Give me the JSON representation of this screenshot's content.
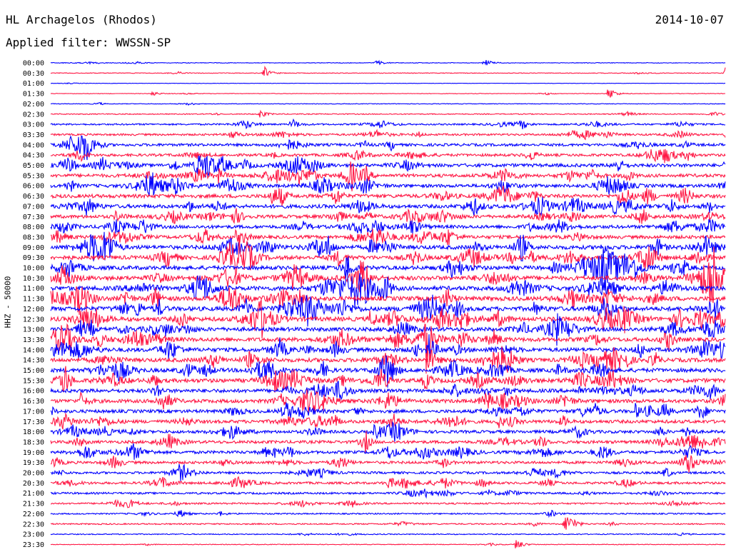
{
  "header": {
    "station": "HL Archagelos (Rhodos)",
    "date": "2014-10-07",
    "filter": "Applied filter: WWSSN-SP"
  },
  "chart_data": {
    "type": "line",
    "ylabel": "HHZ - 50000",
    "row_labels": [
      "00:00",
      "00:30",
      "01:00",
      "01:30",
      "02:00",
      "02:30",
      "03:00",
      "03:30",
      "04:00",
      "04:30",
      "05:00",
      "05:30",
      "06:00",
      "06:30",
      "07:00",
      "07:30",
      "08:00",
      "08:30",
      "09:00",
      "09:30",
      "10:00",
      "10:30",
      "11:00",
      "11:30",
      "12:00",
      "12:30",
      "13:00",
      "13:30",
      "14:00",
      "14:30",
      "15:00",
      "15:30",
      "16:00",
      "16:30",
      "17:00",
      "17:30",
      "18:00",
      "18:30",
      "19:00",
      "19:30",
      "20:00",
      "20:30",
      "21:00",
      "21:30",
      "22:00",
      "22:30",
      "23:00",
      "23:30"
    ],
    "row_duration_minutes": 30,
    "noise_level": [
      1,
      1,
      0.5,
      0.8,
      1,
      1.5,
      2.5,
      3,
      4,
      4,
      5,
      5,
      5,
      5.5,
      5.5,
      5,
      5,
      5,
      6,
      6,
      6,
      6.5,
      6.5,
      6.5,
      6.5,
      6.5,
      6,
      6,
      6,
      6,
      6,
      6,
      5.5,
      5.5,
      5,
      5,
      4.5,
      4.5,
      4.5,
      4,
      3.5,
      3.5,
      3,
      2.5,
      2,
      2,
      1.5,
      1
    ],
    "series": [
      {
        "color": "#0000ff",
        "rows": "even"
      },
      {
        "color": "#ff1744",
        "rows": "odd"
      }
    ],
    "events": [
      {
        "row": 0,
        "minute": 14.5,
        "amp": 5
      },
      {
        "row": 0,
        "minute": 19.3,
        "amp": 6
      },
      {
        "row": 1,
        "minute": 9.5,
        "amp": 9
      },
      {
        "row": 1,
        "minute": 30,
        "amp": 14
      },
      {
        "row": 3,
        "minute": 24.8,
        "amp": 12
      },
      {
        "row": 3,
        "minute": 4.5,
        "amp": 4
      },
      {
        "row": 5,
        "minute": 9.3,
        "amp": 6
      },
      {
        "row": 6,
        "minute": 10.7,
        "amp": 10
      },
      {
        "row": 7,
        "minute": 8,
        "amp": 10
      },
      {
        "row": 7,
        "minute": 30,
        "amp": 8
      },
      {
        "row": 10,
        "minute": 6.5,
        "amp": 12
      },
      {
        "row": 10,
        "minute": 8.6,
        "amp": 10
      },
      {
        "row": 10,
        "minute": 30,
        "amp": 12
      },
      {
        "row": 11,
        "minute": 7.4,
        "amp": 12
      },
      {
        "row": 11,
        "minute": 11.5,
        "amp": 10
      },
      {
        "row": 13,
        "minute": 25.3,
        "amp": 16
      },
      {
        "row": 14,
        "minute": 6.1,
        "amp": 10
      },
      {
        "row": 15,
        "minute": 2.9,
        "amp": 8
      },
      {
        "row": 17,
        "minute": 8.2,
        "amp": 8
      },
      {
        "row": 18,
        "minute": 14.2,
        "amp": 10
      },
      {
        "row": 18,
        "minute": 18.9,
        "amp": 8
      },
      {
        "row": 19,
        "minute": 21.3,
        "amp": 10
      },
      {
        "row": 20,
        "minute": 13.2,
        "amp": 10
      },
      {
        "row": 20,
        "minute": 22.3,
        "amp": 10
      },
      {
        "row": 21,
        "minute": 13.7,
        "amp": 12
      },
      {
        "row": 21,
        "minute": 29.5,
        "amp": 14
      },
      {
        "row": 22,
        "minute": 13.5,
        "amp": 16
      },
      {
        "row": 22,
        "minute": 13.9,
        "amp": 14
      },
      {
        "row": 24,
        "minute": 21.5,
        "amp": 10
      },
      {
        "row": 25,
        "minute": 14.2,
        "amp": 12
      },
      {
        "row": 26,
        "minute": 22.5,
        "amp": 12
      },
      {
        "row": 27,
        "minute": 16.7,
        "amp": 40
      },
      {
        "row": 28,
        "minute": 16.8,
        "amp": 24
      },
      {
        "row": 29,
        "minute": 16.8,
        "amp": 22
      },
      {
        "row": 29,
        "minute": 23.6,
        "amp": 10
      },
      {
        "row": 30,
        "minute": 15,
        "amp": 12
      },
      {
        "row": 30,
        "minute": 22.5,
        "amp": 10
      },
      {
        "row": 31,
        "minute": 16.6,
        "amp": 16
      },
      {
        "row": 33,
        "minute": 1.3,
        "amp": 12
      },
      {
        "row": 34,
        "minute": 13.5,
        "amp": 8
      },
      {
        "row": 34,
        "minute": 26.0,
        "amp": 9
      },
      {
        "row": 35,
        "minute": 19.9,
        "amp": 8
      },
      {
        "row": 36,
        "minute": 14.4,
        "amp": 10
      },
      {
        "row": 38,
        "minute": 9.9,
        "amp": 8
      },
      {
        "row": 39,
        "minute": 7.6,
        "amp": 8
      },
      {
        "row": 41,
        "minute": 15.0,
        "amp": 8
      },
      {
        "row": 44,
        "minute": 7.5,
        "amp": 4
      },
      {
        "row": 45,
        "minute": 22.9,
        "amp": 18
      },
      {
        "row": 47,
        "minute": 20.7,
        "amp": 10
      }
    ]
  }
}
